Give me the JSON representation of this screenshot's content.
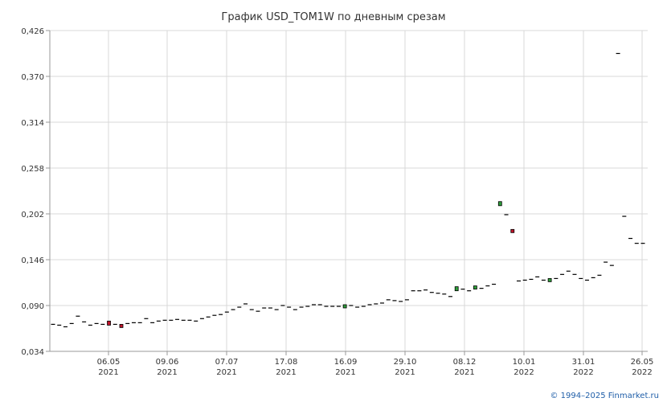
{
  "chart_data": {
    "type": "candlestick",
    "title": "График USD_TOM1W по дневным срезам",
    "xlabel": "",
    "ylabel": "",
    "ylim": [
      0.034,
      0.426
    ],
    "y_ticks": [
      "0,034",
      "0,090",
      "0,146",
      "0,202",
      "0,258",
      "0,314",
      "0,370",
      "0,426"
    ],
    "x_ticks": [
      {
        "date": "06.05",
        "year": "2021"
      },
      {
        "date": "09.06",
        "year": "2021"
      },
      {
        "date": "07.07",
        "year": "2021"
      },
      {
        "date": "17.08",
        "year": "2021"
      },
      {
        "date": "16.09",
        "year": "2021"
      },
      {
        "date": "29.10",
        "year": "2021"
      },
      {
        "date": "08.12",
        "year": "2021"
      },
      {
        "date": "10.01",
        "year": "2022"
      },
      {
        "date": "31.01",
        "year": "2022"
      },
      {
        "date": "26.05",
        "year": "2022"
      }
    ],
    "grid": true,
    "up_color": "#2e9e3a",
    "down_color": "#c0142a",
    "flat_color": "#000000",
    "values": [
      0.067,
      0.066,
      0.064,
      0.068,
      0.077,
      0.07,
      0.066,
      0.068,
      0.067,
      0.066,
      0.067,
      0.068,
      0.068,
      0.069,
      0.069,
      0.074,
      0.069,
      0.071,
      0.072,
      0.072,
      0.073,
      0.072,
      0.072,
      0.071,
      0.074,
      0.076,
      0.078,
      0.079,
      0.082,
      0.085,
      0.088,
      0.092,
      0.085,
      0.083,
      0.087,
      0.087,
      0.085,
      0.09,
      0.088,
      0.085,
      0.088,
      0.089,
      0.091,
      0.091,
      0.089,
      0.089,
      0.089,
      0.091,
      0.09,
      0.088,
      0.089,
      0.091,
      0.092,
      0.093,
      0.097,
      0.096,
      0.095,
      0.097,
      0.108,
      0.108,
      0.109,
      0.106,
      0.105,
      0.104,
      0.101,
      0.108,
      0.11,
      0.108,
      0.11,
      0.111,
      0.114,
      0.116,
      0.216,
      0.201,
      0.181,
      0.12,
      0.121,
      0.122,
      0.125,
      0.121,
      0.122,
      0.123,
      0.128,
      0.132,
      0.128,
      0.123,
      0.121,
      0.124,
      0.127,
      0.143,
      0.139,
      0.398,
      0.199,
      0.172,
      0.166,
      0.166
    ],
    "candles": [
      {
        "index": 9,
        "open": 0.071,
        "close": 0.066
      },
      {
        "index": 11,
        "open": 0.067,
        "close": 0.065
      },
      {
        "index": 47,
        "open": 0.089,
        "close": 0.091
      },
      {
        "index": 65,
        "open": 0.108,
        "close": 0.113
      },
      {
        "index": 68,
        "open": 0.11,
        "close": 0.114
      },
      {
        "index": 72,
        "open": 0.212,
        "close": 0.217
      },
      {
        "index": 74,
        "open": 0.183,
        "close": 0.18
      },
      {
        "index": 80,
        "open": 0.121,
        "close": 0.123
      }
    ]
  },
  "footer": {
    "credit": "© 1994–2025 Finmarket.ru"
  }
}
